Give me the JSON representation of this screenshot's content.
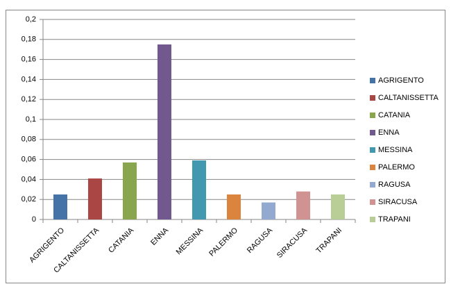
{
  "chart_data": {
    "type": "bar",
    "categories": [
      "AGRIGENTO",
      "CALTANISSETTA",
      "CATANIA",
      "ENNA",
      "MESSINA",
      "PALERMO",
      "RAGUSA",
      "SIRACUSA",
      "TRAPANI"
    ],
    "values": [
      0.025,
      0.041,
      0.057,
      0.175,
      0.059,
      0.025,
      0.017,
      0.028,
      0.025
    ],
    "colors": [
      "#4572a7",
      "#aa4643",
      "#89a54e",
      "#71588f",
      "#4198af",
      "#db843d",
      "#93a9cf",
      "#d19392",
      "#b9cd96"
    ],
    "ylim": [
      0,
      0.2
    ],
    "yticks": [
      0,
      {
        "value": 0.02,
        "label": "0,02"
      },
      {
        "value": 0.04,
        "label": "0,04"
      },
      {
        "value": 0.06,
        "label": "0,06"
      },
      {
        "value": 0.08,
        "label": "0,08"
      },
      {
        "value": 0.1,
        "label": "0,1"
      },
      {
        "value": 0.12,
        "label": "0,12"
      },
      {
        "value": 0.14,
        "label": "0,14"
      },
      {
        "value": 0.16,
        "label": "0,16"
      },
      {
        "value": 0.18,
        "label": "0,18"
      },
      {
        "value": 0.2,
        "label": "0,2"
      }
    ],
    "grid": true,
    "legend": "right"
  }
}
